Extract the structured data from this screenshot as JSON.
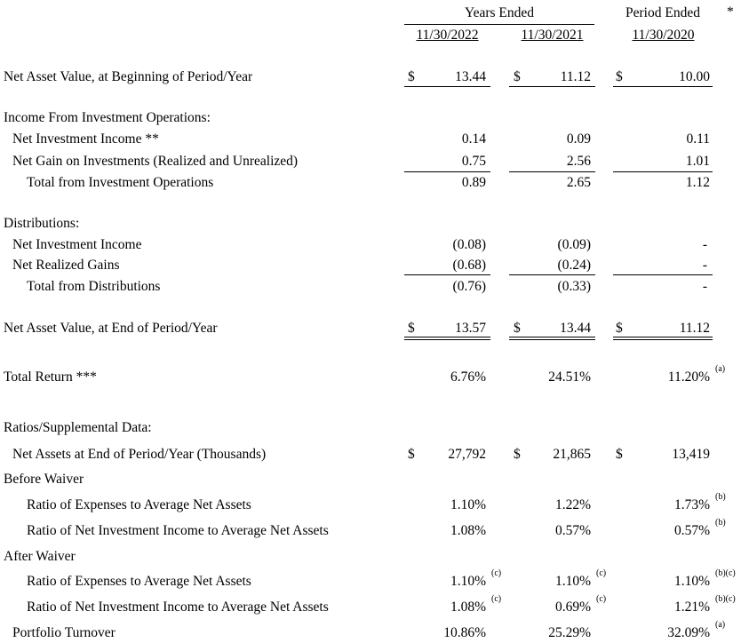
{
  "headers": {
    "years_ended": "Years Ended",
    "period_ended": "Period Ended",
    "asterisk": "*",
    "col1": "11/30/2022",
    "col2": "11/30/2021",
    "col3": "11/30/2020"
  },
  "currency_symbol": "$",
  "rows": {
    "nav_begin": {
      "label": "Net Asset Value, at Beginning of Period/Year",
      "v1": "13.44",
      "v2": "11.12",
      "v3": "10.00"
    },
    "income_heading": {
      "label": "Income From Investment Operations:"
    },
    "nii": {
      "label": "Net Investment Income **",
      "v1": "0.14",
      "v2": "0.09",
      "v3": "0.11"
    },
    "gain": {
      "label": "Net Gain on Investments (Realized and Unrealized)",
      "v1": "0.75",
      "v2": "2.56",
      "v3": "1.01"
    },
    "total_ops": {
      "label": "Total from Investment Operations",
      "v1": "0.89",
      "v2": "2.65",
      "v3": "1.12"
    },
    "dist_heading": {
      "label": "Distributions:"
    },
    "dist_nii": {
      "label": "Net Investment Income",
      "v1": "(0.08)",
      "v2": "(0.09)",
      "v3": "-"
    },
    "dist_gains": {
      "label": "Net Realized Gains",
      "v1": "(0.68)",
      "v2": "(0.24)",
      "v3": "-"
    },
    "total_dist": {
      "label": "Total from Distributions",
      "v1": "(0.76)",
      "v2": "(0.33)",
      "v3": "-"
    },
    "nav_end": {
      "label": "Net Asset Value, at End of Period/Year",
      "v1": "13.57",
      "v2": "13.44",
      "v3": "11.12"
    },
    "total_return": {
      "label": "Total Return ***",
      "v1": "6.76%",
      "v2": "24.51%",
      "v3": "11.20%",
      "n3": "(a)"
    },
    "ratios_heading": {
      "label": "Ratios/Supplemental Data:"
    },
    "net_assets": {
      "label": "Net Assets at End of Period/Year (Thousands)",
      "v1": "27,792",
      "v2": "21,865",
      "v3": "13,419"
    },
    "before_waiver": {
      "label": "Before Waiver"
    },
    "bw_expenses": {
      "label": "Ratio of Expenses to Average Net Assets",
      "v1": "1.10%",
      "v2": "1.22%",
      "v3": "1.73%",
      "n3": "(b)"
    },
    "bw_nii": {
      "label": "Ratio of Net Investment Income to Average Net Assets",
      "v1": "1.08%",
      "v2": "0.57%",
      "v3": "0.57%",
      "n3": "(b)"
    },
    "after_waiver": {
      "label": "After Waiver"
    },
    "aw_expenses": {
      "label": "Ratio of Expenses to Average Net Assets",
      "v1": "1.10%",
      "n1": "(c)",
      "v2": "1.10%",
      "n2": "(c)",
      "v3": "1.10%",
      "n3": "(b)(c)"
    },
    "aw_nii": {
      "label": "Ratio of Net Investment Income to Average Net Assets",
      "v1": "1.08%",
      "n1": "(c)",
      "v2": "0.69%",
      "n2": "(c)",
      "v3": "1.21%",
      "n3": "(b)(c)"
    },
    "turnover": {
      "label": "Portfolio Turnover",
      "v1": "10.86%",
      "v2": "25.29%",
      "v3": "32.09%",
      "n3": "(a)"
    }
  }
}
